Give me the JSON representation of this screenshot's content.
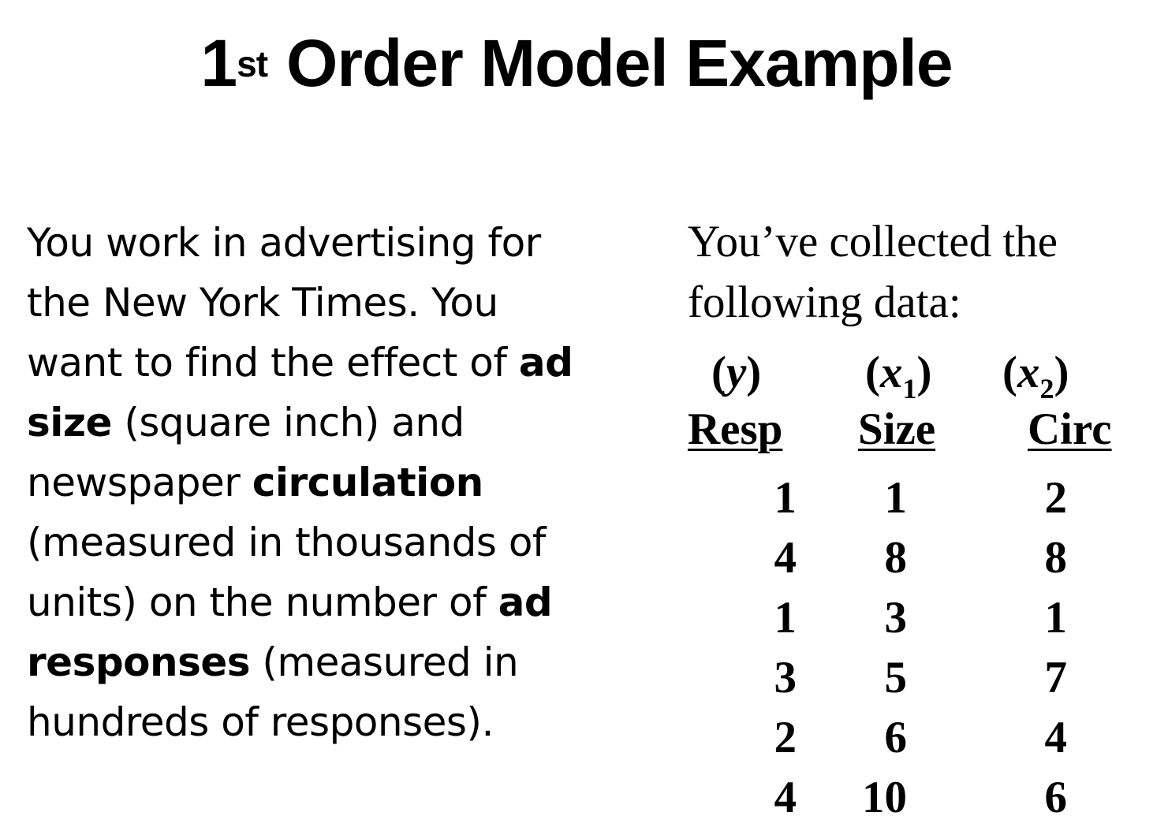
{
  "title": {
    "number": "1",
    "superscript": "st",
    "text": "Order Model Example"
  },
  "description": {
    "l1": "You work in advertising for",
    "l2": "the New York Times.  You",
    "l3a": "want to find the effect of ",
    "l3b": "ad",
    "l4a": "size",
    "l4b": " (square inch) and",
    "l5a": "newspaper ",
    "l5b": "circulation",
    "l6": "(measured in thousands of",
    "l7a": "units) on the number of ",
    "l7b": "ad",
    "l8a": "responses",
    "l8b": " (measured in",
    "l9": "hundreds of responses)."
  },
  "intro": {
    "line1": "You’ve collected the",
    "line2": "following data:"
  },
  "variables": {
    "y": {
      "open": "(",
      "symbol": "y",
      "close": ")"
    },
    "x1": {
      "open": "(",
      "symbol": "x",
      "sub": "1",
      "close": ")"
    },
    "x2": {
      "open": "(",
      "symbol": "x",
      "sub": "2",
      "close": ")"
    }
  },
  "table": {
    "headers": [
      "Resp",
      "Size",
      "Circ"
    ],
    "rows": [
      [
        "1",
        "1",
        "2"
      ],
      [
        "4",
        "8",
        "8"
      ],
      [
        "1",
        "3",
        "1"
      ],
      [
        "3",
        "5",
        "7"
      ],
      [
        "2",
        "6",
        "4"
      ],
      [
        "4",
        "10",
        "6"
      ]
    ]
  }
}
